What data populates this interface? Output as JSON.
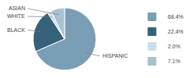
{
  "chart_data": {
    "type": "pie",
    "categories": [
      "HISPANIC",
      "BLACK",
      "WHITE",
      "ASIAN"
    ],
    "values": [
      68.4,
      22.4,
      2.0,
      7.1
    ],
    "value_labels": [
      "68.4%",
      "22.4%",
      "2.0%",
      "7.1%"
    ],
    "colors": [
      "#7a9eb5",
      "#35617a",
      "#ccdde8",
      "#a8c2d0"
    ],
    "legend": "right"
  }
}
